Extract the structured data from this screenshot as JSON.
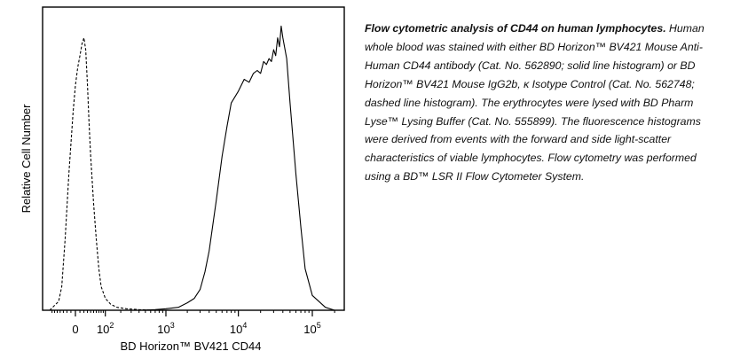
{
  "chart_data": {
    "type": "line",
    "xlabel": "BD Horizon™ BV421 CD44",
    "ylabel": "Relative Cell Number",
    "x_scale": "biexponential",
    "xlim": [
      -80,
      200000
    ],
    "ylim": [
      0,
      100
    ],
    "grid": false,
    "x_tick_labels": [
      {
        "value": 0,
        "label": "0"
      },
      {
        "value": 100,
        "base": "10",
        "exp": "2"
      },
      {
        "value": 1000,
        "base": "10",
        "exp": "3"
      },
      {
        "value": 10000,
        "base": "10",
        "exp": "4"
      },
      {
        "value": 100000,
        "base": "10",
        "exp": "5"
      }
    ],
    "series": [
      {
        "style": "dashed",
        "color": "#000000",
        "x": [
          -80,
          -45,
          -35,
          -25,
          -15,
          -5,
          0,
          5,
          10,
          15,
          20,
          25,
          30,
          35,
          40,
          50,
          60,
          70,
          80,
          100,
          130,
          170,
          250,
          400,
          700,
          1000
        ],
        "y": [
          0,
          3,
          8,
          24,
          46,
          67,
          76,
          82,
          86,
          90,
          92,
          88,
          76,
          63,
          52,
          36,
          24,
          14,
          8,
          4,
          2,
          1,
          0.5,
          0.2,
          0,
          0
        ]
      },
      {
        "style": "solid",
        "color": "#000000",
        "x": [
          400,
          700,
          1000,
          1500,
          2000,
          2500,
          3000,
          3500,
          4000,
          5000,
          6000,
          7000,
          8000,
          10000,
          12000,
          14000,
          16000,
          18000,
          20000,
          22000,
          24000,
          26000,
          28000,
          30000,
          32000,
          34000,
          36000,
          38000,
          40000,
          45000,
          50000,
          60000,
          70000,
          80000,
          100000,
          150000,
          200000
        ],
        "y": [
          0,
          0.2,
          0.5,
          1,
          2.5,
          4,
          7,
          13,
          20,
          37,
          52,
          62,
          70,
          74,
          78,
          77,
          80,
          81,
          80,
          84,
          83,
          85,
          84,
          88,
          86,
          92,
          89,
          96,
          92,
          85,
          70,
          46,
          28,
          14,
          5,
          1,
          0
        ]
      }
    ]
  },
  "caption": {
    "title": "Flow cytometric analysis of CD44 on human lymphocytes.",
    "body": "Human whole blood was stained with either BD Horizon™ BV421 Mouse Anti-Human CD44 antibody (Cat. No. 562890; solid line histogram) or BD Horizon™ BV421 Mouse IgG2b, κ Isotype Control (Cat. No. 562748; dashed line histogram). The erythrocytes were lysed with BD Pharm Lyse™ Lysing Buffer (Cat. No. 555899). The fluorescence histograms were derived from events with the forward and side light-scatter characteristics of viable lymphocytes. Flow cytometry was performed using a BD™ LSR II Flow Cytometer System."
  }
}
